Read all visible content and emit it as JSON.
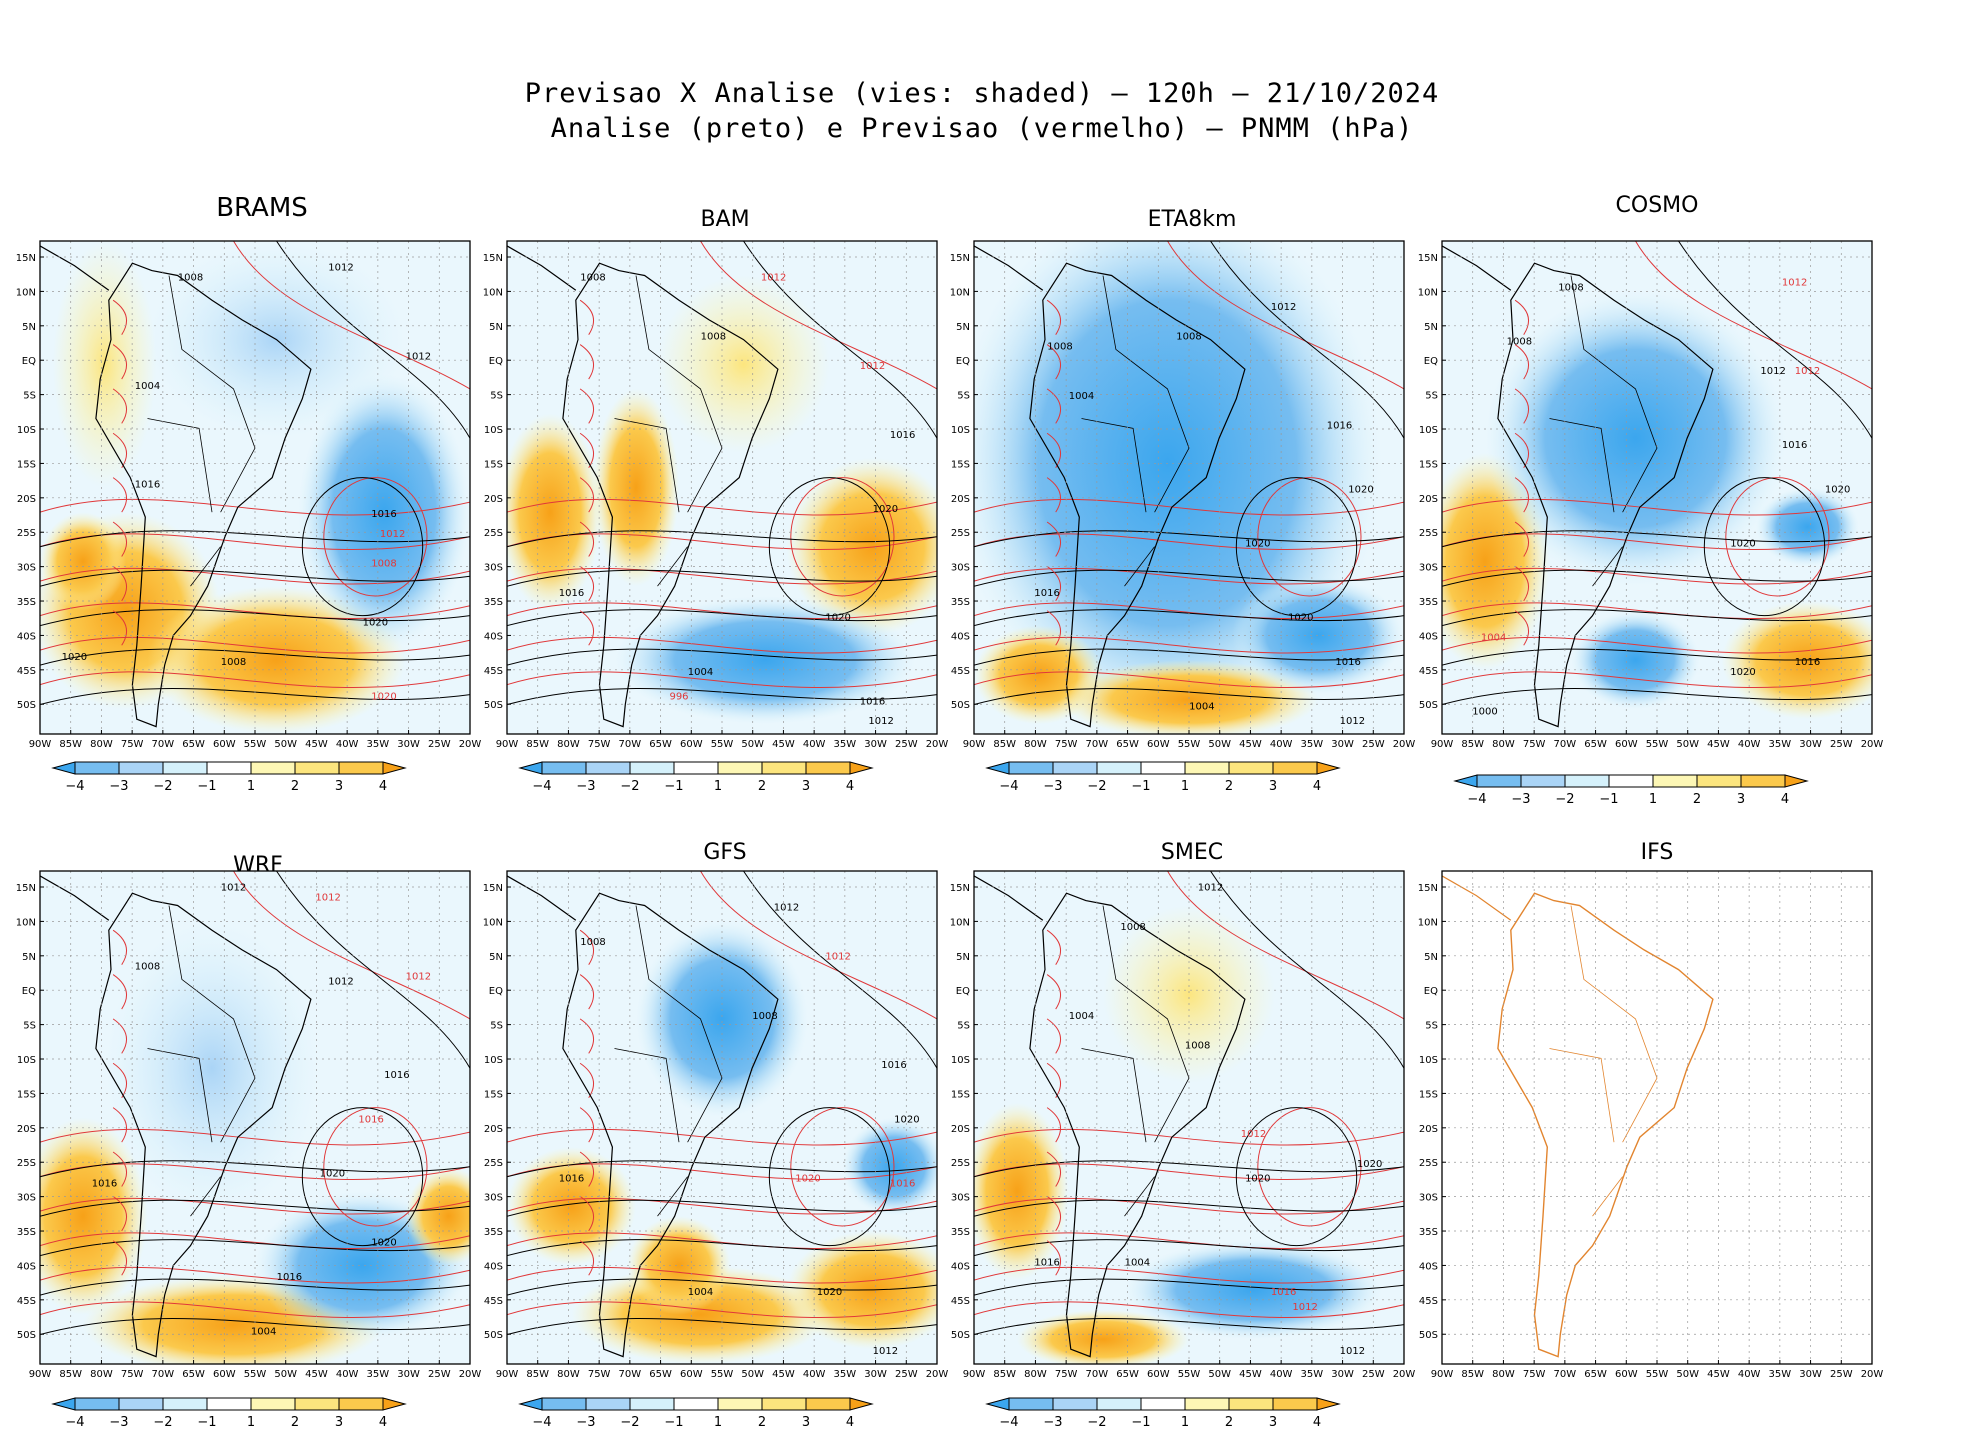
{
  "header": {
    "line1": "Previsao X Analise (vies: shaded) — 120h — 21/10/2024",
    "line2": "Analise (preto) e Previsao (vermelho) — PNMM (hPa)"
  },
  "axes": {
    "lat_labels": [
      "15N",
      "10N",
      "5N",
      "EQ",
      "5S",
      "10S",
      "15S",
      "20S",
      "25S",
      "30S",
      "35S",
      "40S",
      "45S",
      "50S"
    ],
    "lon_labels": [
      "90W",
      "85W",
      "80W",
      "75W",
      "70W",
      "65W",
      "60W",
      "55W",
      "50W",
      "45W",
      "40W",
      "35W",
      "30W",
      "25W",
      "20W"
    ]
  },
  "colorbar": {
    "labels": [
      "−4",
      "−3",
      "−2",
      "−1",
      "1",
      "2",
      "3",
      "4"
    ],
    "colors": [
      "#3ba6ee",
      "#76bdf0",
      "#aad4f6",
      "#d5f1fb",
      "#ffffff",
      "#fdf7b5",
      "#fce57e",
      "#fbc94c",
      "#f7a118"
    ]
  },
  "colors": {
    "analysis_contour": "#000000",
    "forecast_contour": "#e0383a",
    "ifs_coast": "#e2852f"
  },
  "panels": [
    {
      "name": "BRAMS",
      "has_data": true,
      "labels": [
        {
          "t": "1008",
          "c": "k",
          "lx": 0.35,
          "ly": 0.08
        },
        {
          "t": "1012",
          "c": "k",
          "lx": 0.7,
          "ly": 0.06
        },
        {
          "t": "1012",
          "c": "k",
          "lx": 0.88,
          "ly": 0.24
        },
        {
          "t": "1004",
          "c": "k",
          "lx": 0.25,
          "ly": 0.3
        },
        {
          "t": "1016",
          "c": "k",
          "lx": 0.25,
          "ly": 0.5
        },
        {
          "t": "1016",
          "c": "k",
          "lx": 0.8,
          "ly": 0.56
        },
        {
          "t": "1020",
          "c": "k",
          "lx": 0.78,
          "ly": 0.78
        },
        {
          "t": "1020",
          "c": "k",
          "lx": 0.08,
          "ly": 0.85
        },
        {
          "t": "1008",
          "c": "k",
          "lx": 0.45,
          "ly": 0.86
        },
        {
          "t": "1012",
          "c": "r",
          "lx": 0.82,
          "ly": 0.6
        },
        {
          "t": "1008",
          "c": "r",
          "lx": 0.8,
          "ly": 0.66
        },
        {
          "t": "1020",
          "c": "r",
          "lx": 0.8,
          "ly": 0.93
        }
      ]
    },
    {
      "name": "BAM",
      "has_data": true,
      "labels": [
        {
          "t": "1008",
          "c": "k",
          "lx": 0.2,
          "ly": 0.08
        },
        {
          "t": "1008",
          "c": "k",
          "lx": 0.48,
          "ly": 0.2
        },
        {
          "t": "1012",
          "c": "r",
          "lx": 0.62,
          "ly": 0.08
        },
        {
          "t": "1012",
          "c": "r",
          "lx": 0.85,
          "ly": 0.26
        },
        {
          "t": "1016",
          "c": "k",
          "lx": 0.92,
          "ly": 0.4
        },
        {
          "t": "1020",
          "c": "k",
          "lx": 0.88,
          "ly": 0.55
        },
        {
          "t": "1020",
          "c": "k",
          "lx": 0.77,
          "ly": 0.77
        },
        {
          "t": "1016",
          "c": "k",
          "lx": 0.15,
          "ly": 0.72
        },
        {
          "t": "1004",
          "c": "k",
          "lx": 0.45,
          "ly": 0.88
        },
        {
          "t": "1016",
          "c": "k",
          "lx": 0.85,
          "ly": 0.94
        },
        {
          "t": "1012",
          "c": "k",
          "lx": 0.87,
          "ly": 0.98
        },
        {
          "t": "996",
          "c": "r",
          "lx": 0.4,
          "ly": 0.93
        }
      ]
    },
    {
      "name": "ETA8km",
      "has_data": true,
      "labels": [
        {
          "t": "1012",
          "c": "k",
          "lx": 0.72,
          "ly": 0.14
        },
        {
          "t": "1008",
          "c": "k",
          "lx": 0.5,
          "ly": 0.2
        },
        {
          "t": "1008",
          "c": "k",
          "lx": 0.2,
          "ly": 0.22
        },
        {
          "t": "1004",
          "c": "k",
          "lx": 0.25,
          "ly": 0.32
        },
        {
          "t": "1016",
          "c": "k",
          "lx": 0.85,
          "ly": 0.38
        },
        {
          "t": "1020",
          "c": "k",
          "lx": 0.9,
          "ly": 0.51
        },
        {
          "t": "1020",
          "c": "k",
          "lx": 0.66,
          "ly": 0.62
        },
        {
          "t": "1020",
          "c": "k",
          "lx": 0.76,
          "ly": 0.77
        },
        {
          "t": "1016",
          "c": "k",
          "lx": 0.17,
          "ly": 0.72
        },
        {
          "t": "1016",
          "c": "k",
          "lx": 0.87,
          "ly": 0.86
        },
        {
          "t": "1004",
          "c": "k",
          "lx": 0.53,
          "ly": 0.95
        },
        {
          "t": "1012",
          "c": "k",
          "lx": 0.88,
          "ly": 0.98
        }
      ]
    },
    {
      "name": "COSMO",
      "has_data": true,
      "labels": [
        {
          "t": "1008",
          "c": "k",
          "lx": 0.3,
          "ly": 0.1
        },
        {
          "t": "1012",
          "c": "r",
          "lx": 0.82,
          "ly": 0.09
        },
        {
          "t": "1008",
          "c": "k",
          "lx": 0.18,
          "ly": 0.21
        },
        {
          "t": "1012",
          "c": "k",
          "lx": 0.77,
          "ly": 0.27
        },
        {
          "t": "1012",
          "c": "r",
          "lx": 0.85,
          "ly": 0.27
        },
        {
          "t": "1016",
          "c": "k",
          "lx": 0.82,
          "ly": 0.42
        },
        {
          "t": "1020",
          "c": "k",
          "lx": 0.92,
          "ly": 0.51
        },
        {
          "t": "1020",
          "c": "k",
          "lx": 0.7,
          "ly": 0.62
        },
        {
          "t": "1016",
          "c": "k",
          "lx": 0.85,
          "ly": 0.86
        },
        {
          "t": "1020",
          "c": "k",
          "lx": 0.7,
          "ly": 0.88
        },
        {
          "t": "1000",
          "c": "k",
          "lx": 0.1,
          "ly": 0.96
        },
        {
          "t": "1004",
          "c": "r",
          "lx": 0.12,
          "ly": 0.81
        }
      ]
    },
    {
      "name": "WRF",
      "has_data": true,
      "labels": [
        {
          "t": "1012",
          "c": "k",
          "lx": 0.45,
          "ly": 0.04
        },
        {
          "t": "1012",
          "c": "r",
          "lx": 0.67,
          "ly": 0.06
        },
        {
          "t": "1012",
          "c": "k",
          "lx": 0.7,
          "ly": 0.23
        },
        {
          "t": "1012",
          "c": "r",
          "lx": 0.88,
          "ly": 0.22
        },
        {
          "t": "1008",
          "c": "k",
          "lx": 0.25,
          "ly": 0.2
        },
        {
          "t": "1016",
          "c": "k",
          "lx": 0.83,
          "ly": 0.42
        },
        {
          "t": "1016",
          "c": "r",
          "lx": 0.77,
          "ly": 0.51
        },
        {
          "t": "1020",
          "c": "k",
          "lx": 0.68,
          "ly": 0.62
        },
        {
          "t": "1020",
          "c": "k",
          "lx": 0.8,
          "ly": 0.76
        },
        {
          "t": "1016",
          "c": "k",
          "lx": 0.15,
          "ly": 0.64
        },
        {
          "t": "1016",
          "c": "k",
          "lx": 0.58,
          "ly": 0.83
        },
        {
          "t": "1004",
          "c": "k",
          "lx": 0.52,
          "ly": 0.94
        }
      ]
    },
    {
      "name": "GFS",
      "has_data": true,
      "labels": [
        {
          "t": "1012",
          "c": "k",
          "lx": 0.65,
          "ly": 0.08
        },
        {
          "t": "1012",
          "c": "r",
          "lx": 0.77,
          "ly": 0.18
        },
        {
          "t": "1008",
          "c": "k",
          "lx": 0.2,
          "ly": 0.15
        },
        {
          "t": "1008",
          "c": "k",
          "lx": 0.6,
          "ly": 0.3
        },
        {
          "t": "1016",
          "c": "k",
          "lx": 0.9,
          "ly": 0.4
        },
        {
          "t": "1020",
          "c": "k",
          "lx": 0.93,
          "ly": 0.51
        },
        {
          "t": "1020",
          "c": "r",
          "lx": 0.7,
          "ly": 0.63
        },
        {
          "t": "1016",
          "c": "r",
          "lx": 0.92,
          "ly": 0.64
        },
        {
          "t": "1016",
          "c": "k",
          "lx": 0.15,
          "ly": 0.63
        },
        {
          "t": "1020",
          "c": "k",
          "lx": 0.75,
          "ly": 0.86
        },
        {
          "t": "1004",
          "c": "k",
          "lx": 0.45,
          "ly": 0.86
        },
        {
          "t": "1012",
          "c": "k",
          "lx": 0.88,
          "ly": 0.98
        }
      ]
    },
    {
      "name": "SMEC",
      "has_data": true,
      "labels": [
        {
          "t": "1012",
          "c": "k",
          "lx": 0.55,
          "ly": 0.04
        },
        {
          "t": "1008",
          "c": "k",
          "lx": 0.37,
          "ly": 0.12
        },
        {
          "t": "1008",
          "c": "k",
          "lx": 0.52,
          "ly": 0.36
        },
        {
          "t": "1004",
          "c": "k",
          "lx": 0.25,
          "ly": 0.3
        },
        {
          "t": "1012",
          "c": "r",
          "lx": 0.65,
          "ly": 0.54
        },
        {
          "t": "1020",
          "c": "k",
          "lx": 0.92,
          "ly": 0.6
        },
        {
          "t": "1020",
          "c": "k",
          "lx": 0.66,
          "ly": 0.63
        },
        {
          "t": "1016",
          "c": "k",
          "lx": 0.17,
          "ly": 0.8
        },
        {
          "t": "1004",
          "c": "k",
          "lx": 0.38,
          "ly": 0.8
        },
        {
          "t": "1016",
          "c": "r",
          "lx": 0.72,
          "ly": 0.86
        },
        {
          "t": "1012",
          "c": "r",
          "lx": 0.77,
          "ly": 0.89
        },
        {
          "t": "1012",
          "c": "k",
          "lx": 0.88,
          "ly": 0.98
        }
      ]
    },
    {
      "name": "IFS",
      "has_data": false,
      "labels": []
    }
  ]
}
